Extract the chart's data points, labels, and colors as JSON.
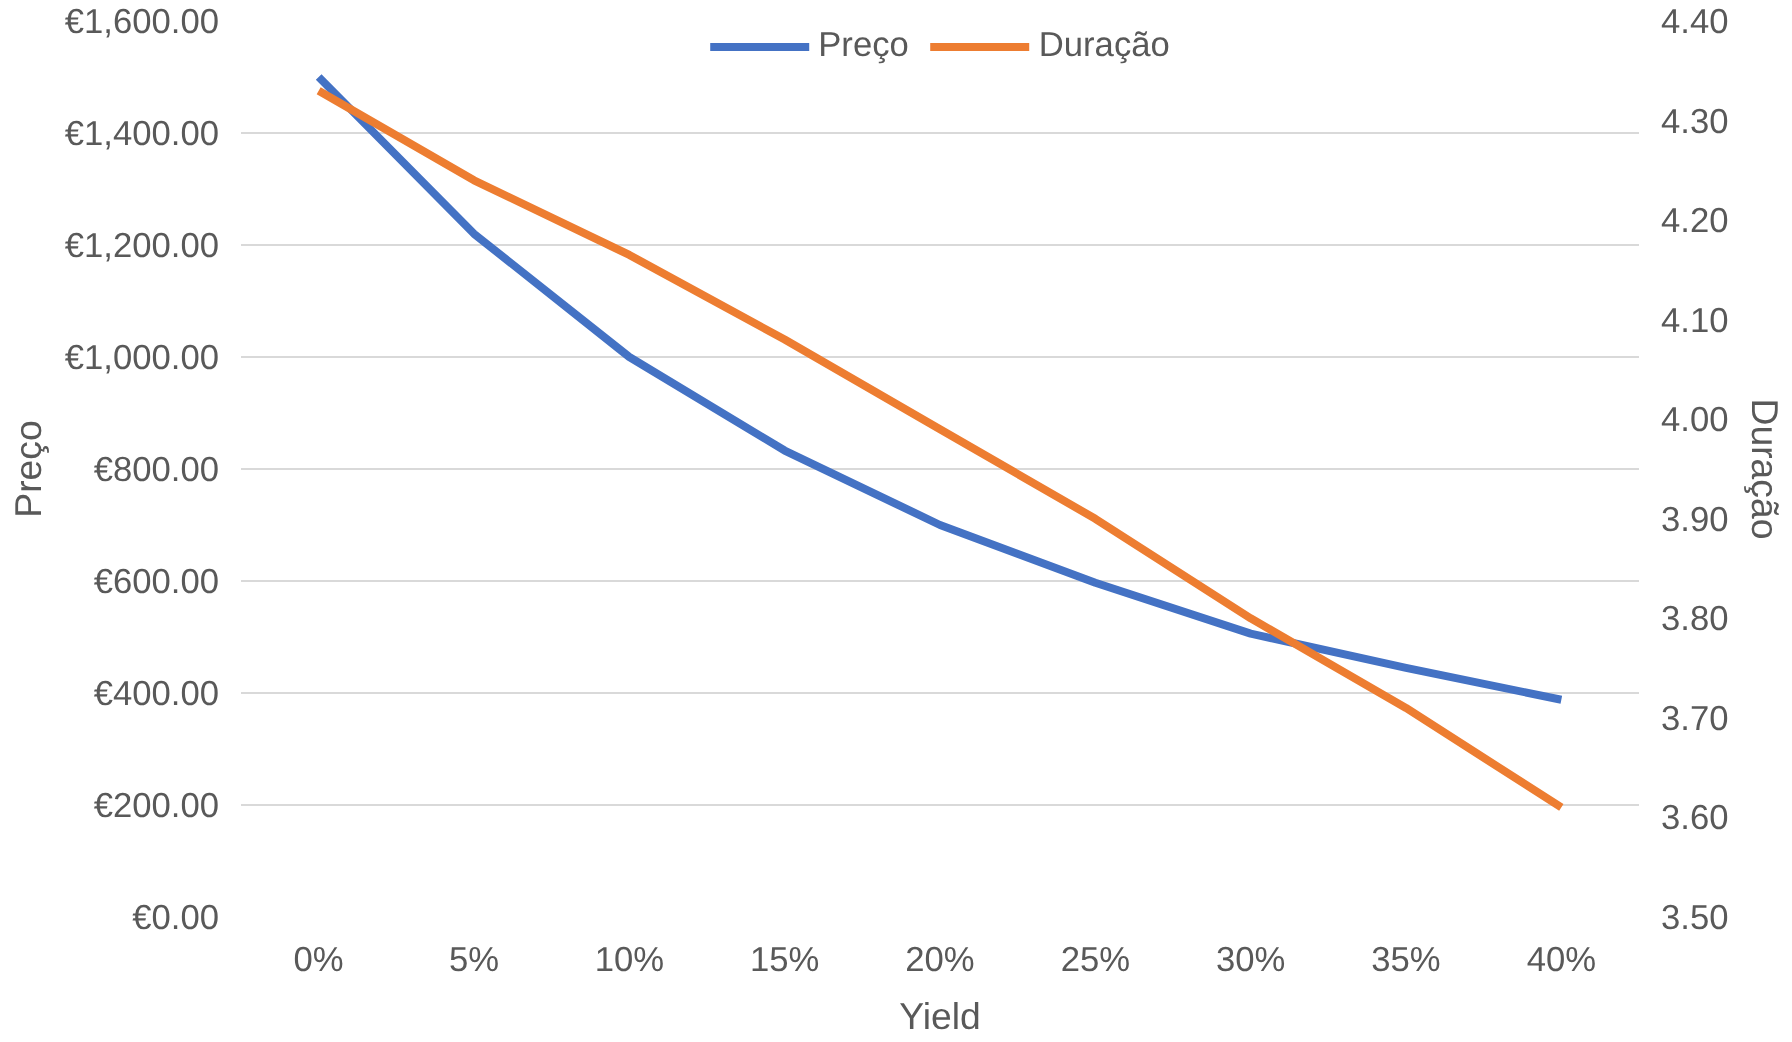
{
  "chart_data": {
    "type": "line",
    "xlabel": "Yield",
    "ylabel": "Preço",
    "y2label": "Duração",
    "categories": [
      "0%",
      "5%",
      "10%",
      "15%",
      "20%",
      "25%",
      "30%",
      "35%",
      "40%"
    ],
    "series": [
      {
        "name": "Preço",
        "color": "#4472c4",
        "values": [
          1500,
          1220,
          1000,
          833,
          700,
          597,
          506,
          445,
          388
        ]
      },
      {
        "name": "Duração",
        "color": "#ed7d31",
        "axis": "y2",
        "values": [
          4.33,
          4.24,
          4.165,
          4.08,
          3.99,
          3.9,
          3.8,
          3.71,
          3.61
        ]
      }
    ],
    "ylim": [
      0,
      1600
    ],
    "yticks": [
      {
        "value": 0,
        "label": "€0.00"
      },
      {
        "value": 200,
        "label": "€200.00"
      },
      {
        "value": 400,
        "label": "€400.00"
      },
      {
        "value": 600,
        "label": "€600.00"
      },
      {
        "value": 800,
        "label": "€800.00"
      },
      {
        "value": 1000,
        "label": "€1,000.00"
      },
      {
        "value": 1200,
        "label": "€1,200.00"
      },
      {
        "value": 1400,
        "label": "€1,400.00"
      },
      {
        "value": 1600,
        "label": "€1,600.00"
      }
    ],
    "y2lim": [
      3.5,
      4.4
    ],
    "y2ticks": [
      {
        "value": 3.5,
        "label": "3.50"
      },
      {
        "value": 3.6,
        "label": "3.60"
      },
      {
        "value": 3.7,
        "label": "3.70"
      },
      {
        "value": 3.8,
        "label": "3.80"
      },
      {
        "value": 3.9,
        "label": "3.90"
      },
      {
        "value": 4.0,
        "label": "4.00"
      },
      {
        "value": 4.1,
        "label": "4.10"
      },
      {
        "value": 4.2,
        "label": "4.20"
      },
      {
        "value": 4.3,
        "label": "4.30"
      },
      {
        "value": 4.4,
        "label": "4.40"
      }
    ],
    "grid": "y",
    "legend": "top",
    "line_style": "solid",
    "marker": "none"
  }
}
